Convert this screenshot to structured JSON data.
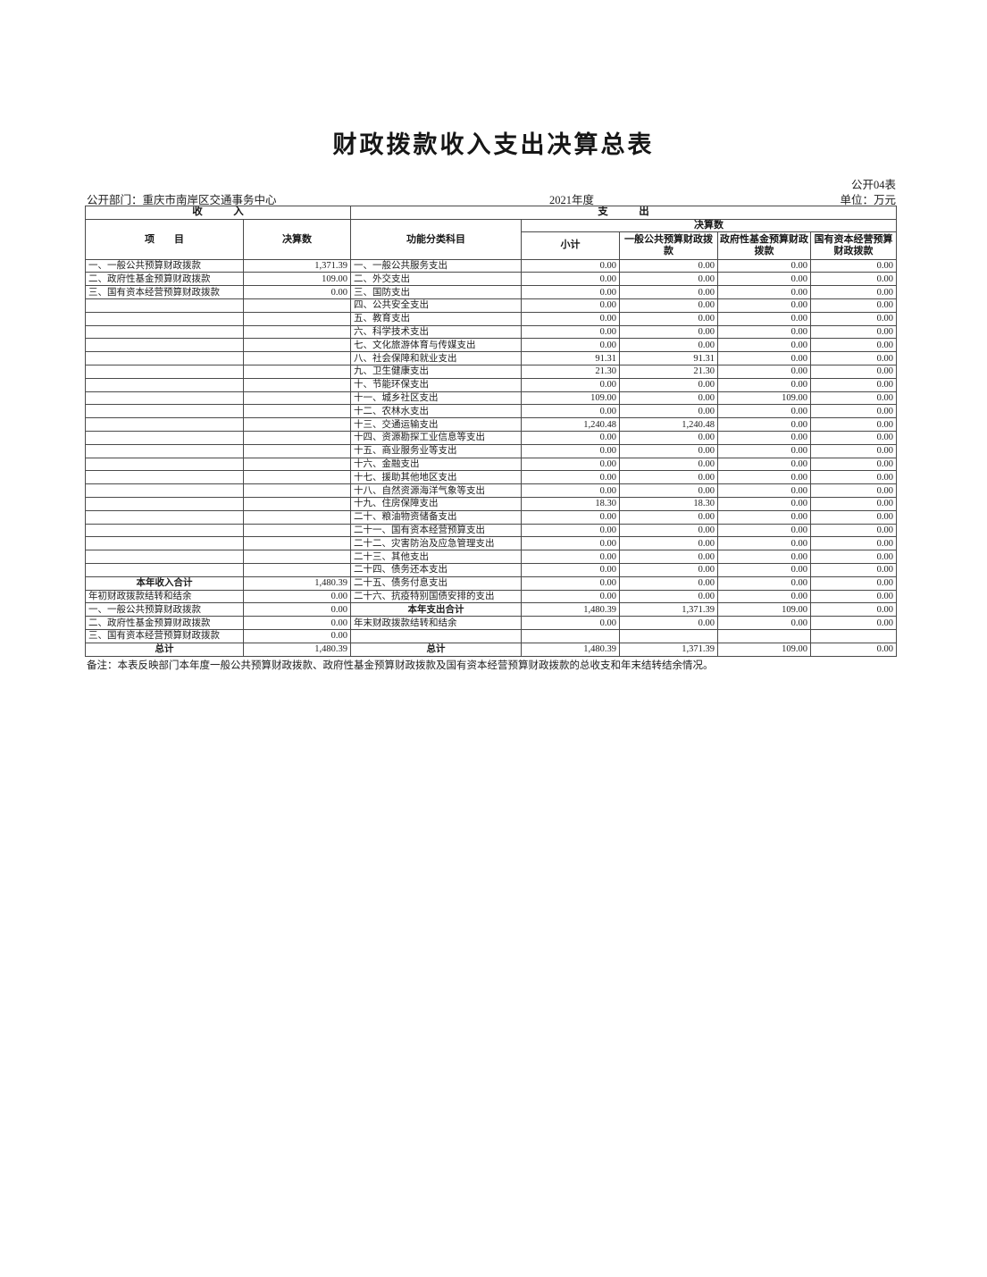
{
  "page": {
    "title": "财政拨款收入支出决算总表",
    "table_code": "公开04表",
    "department": "公开部门：重庆市南岸区交通事务中心",
    "year": "2021年度",
    "unit": "单位：万元",
    "note": "备注：本表反映部门本年度一般公共预算财政拨款、政府性基金预算财政拨款及国有资本经营预算财政拨款的总收支和年末结转结余情况。"
  },
  "table": {
    "header": {
      "income": "收　　　入",
      "expense": "支　　　出",
      "item": "项　　目",
      "amount": "决算数",
      "func": "功能分类科目",
      "final": "决算数",
      "subtotal": "小计",
      "general": "一般公共预算财政拨款",
      "gov_fund": "政府性基金预算财政拨款",
      "state_capital": "国有资本经营预算财政拨款"
    },
    "rows": [
      {
        "income_item": "一、一般公共预算财政拨款",
        "income_value": "1,371.39",
        "expense_item": "一、一般公共服务支出",
        "subtotal": "0.00",
        "general_budget": "0.00",
        "gov_fund": "0.00",
        "state_capital": "0.00"
      },
      {
        "income_item": "二、政府性基金预算财政拨款",
        "income_value": "109.00",
        "expense_item": "二、外交支出",
        "subtotal": "0.00",
        "general_budget": "0.00",
        "gov_fund": "0.00",
        "state_capital": "0.00"
      },
      {
        "income_item": "三、国有资本经营预算财政拨款",
        "income_value": "0.00",
        "expense_item": "三、国防支出",
        "subtotal": "0.00",
        "general_budget": "0.00",
        "gov_fund": "0.00",
        "state_capital": "0.00"
      },
      {
        "income_item": "",
        "income_value": "",
        "expense_item": "四、公共安全支出",
        "subtotal": "0.00",
        "general_budget": "0.00",
        "gov_fund": "0.00",
        "state_capital": "0.00"
      },
      {
        "income_item": "",
        "income_value": "",
        "expense_item": "五、教育支出",
        "subtotal": "0.00",
        "general_budget": "0.00",
        "gov_fund": "0.00",
        "state_capital": "0.00"
      },
      {
        "income_item": "",
        "income_value": "",
        "expense_item": "六、科学技术支出",
        "subtotal": "0.00",
        "general_budget": "0.00",
        "gov_fund": "0.00",
        "state_capital": "0.00"
      },
      {
        "income_item": "",
        "income_value": "",
        "expense_item": "七、文化旅游体育与传媒支出",
        "subtotal": "0.00",
        "general_budget": "0.00",
        "gov_fund": "0.00",
        "state_capital": "0.00"
      },
      {
        "income_item": "",
        "income_value": "",
        "expense_item": "八、社会保障和就业支出",
        "subtotal": "91.31",
        "general_budget": "91.31",
        "gov_fund": "0.00",
        "state_capital": "0.00"
      },
      {
        "income_item": "",
        "income_value": "",
        "expense_item": "九、卫生健康支出",
        "subtotal": "21.30",
        "general_budget": "21.30",
        "gov_fund": "0.00",
        "state_capital": "0.00"
      },
      {
        "income_item": "",
        "income_value": "",
        "expense_item": "十、节能环保支出",
        "subtotal": "0.00",
        "general_budget": "0.00",
        "gov_fund": "0.00",
        "state_capital": "0.00"
      },
      {
        "income_item": "",
        "income_value": "",
        "expense_item": "十一、城乡社区支出",
        "subtotal": "109.00",
        "general_budget": "0.00",
        "gov_fund": "109.00",
        "state_capital": "0.00"
      },
      {
        "income_item": "",
        "income_value": "",
        "expense_item": "十二、农林水支出",
        "subtotal": "0.00",
        "general_budget": "0.00",
        "gov_fund": "0.00",
        "state_capital": "0.00"
      },
      {
        "income_item": "",
        "income_value": "",
        "expense_item": "十三、交通运输支出",
        "subtotal": "1,240.48",
        "general_budget": "1,240.48",
        "gov_fund": "0.00",
        "state_capital": "0.00"
      },
      {
        "income_item": "",
        "income_value": "",
        "expense_item": "十四、资源勘探工业信息等支出",
        "subtotal": "0.00",
        "general_budget": "0.00",
        "gov_fund": "0.00",
        "state_capital": "0.00"
      },
      {
        "income_item": "",
        "income_value": "",
        "expense_item": "十五、商业服务业等支出",
        "subtotal": "0.00",
        "general_budget": "0.00",
        "gov_fund": "0.00",
        "state_capital": "0.00"
      },
      {
        "income_item": "",
        "income_value": "",
        "expense_item": "十六、金融支出",
        "subtotal": "0.00",
        "general_budget": "0.00",
        "gov_fund": "0.00",
        "state_capital": "0.00"
      },
      {
        "income_item": "",
        "income_value": "",
        "expense_item": "十七、援助其他地区支出",
        "subtotal": "0.00",
        "general_budget": "0.00",
        "gov_fund": "0.00",
        "state_capital": "0.00"
      },
      {
        "income_item": "",
        "income_value": "",
        "expense_item": "十八、自然资源海洋气象等支出",
        "subtotal": "0.00",
        "general_budget": "0.00",
        "gov_fund": "0.00",
        "state_capital": "0.00"
      },
      {
        "income_item": "",
        "income_value": "",
        "expense_item": "十九、住房保障支出",
        "subtotal": "18.30",
        "general_budget": "18.30",
        "gov_fund": "0.00",
        "state_capital": "0.00"
      },
      {
        "income_item": "",
        "income_value": "",
        "expense_item": "二十、粮油物资储备支出",
        "subtotal": "0.00",
        "general_budget": "0.00",
        "gov_fund": "0.00",
        "state_capital": "0.00"
      },
      {
        "income_item": "",
        "income_value": "",
        "expense_item": "二十一、国有资本经营预算支出",
        "subtotal": "0.00",
        "general_budget": "0.00",
        "gov_fund": "0.00",
        "state_capital": "0.00"
      },
      {
        "income_item": "",
        "income_value": "",
        "expense_item": "二十二、灾害防治及应急管理支出",
        "subtotal": "0.00",
        "general_budget": "0.00",
        "gov_fund": "0.00",
        "state_capital": "0.00"
      },
      {
        "income_item": "",
        "income_value": "",
        "expense_item": "二十三、其他支出",
        "subtotal": "0.00",
        "general_budget": "0.00",
        "gov_fund": "0.00",
        "state_capital": "0.00"
      },
      {
        "income_item": "",
        "income_value": "",
        "expense_item": "二十四、债务还本支出",
        "subtotal": "0.00",
        "general_budget": "0.00",
        "gov_fund": "0.00",
        "state_capital": "0.00"
      },
      {
        "income_item": "本年收入合计",
        "income_total": true,
        "income_value": "1,480.39",
        "expense_item": "二十五、债务付息支出",
        "subtotal": "0.00",
        "general_budget": "0.00",
        "gov_fund": "0.00",
        "state_capital": "0.00"
      },
      {
        "income_item": "年初财政拨款结转和结余",
        "income_value": "0.00",
        "expense_item": "二十六、抗疫特别国债安排的支出",
        "subtotal": "0.00",
        "general_budget": "0.00",
        "gov_fund": "0.00",
        "state_capital": "0.00"
      },
      {
        "income_item": "一、一般公共预算财政拨款",
        "income_value": "0.00",
        "expense_item": "本年支出合计",
        "expense_total": true,
        "subtotal": "1,480.39",
        "general_budget": "1,371.39",
        "gov_fund": "109.00",
        "state_capital": "0.00"
      },
      {
        "income_item": "二、政府性基金预算财政拨款",
        "income_value": "0.00",
        "expense_item": "年末财政拨款结转和结余",
        "subtotal": "0.00",
        "general_budget": "0.00",
        "gov_fund": "0.00",
        "state_capital": "0.00"
      },
      {
        "income_item": "三、国有资本经营预算财政拨款",
        "income_value": "0.00",
        "expense_item": "",
        "subtotal": "",
        "general_budget": "",
        "gov_fund": "",
        "state_capital": ""
      },
      {
        "income_item": "总计",
        "income_total": true,
        "income_value": "1,480.39",
        "expense_item": "总计",
        "expense_total": true,
        "subtotal": "1,480.39",
        "general_budget": "1,371.39",
        "gov_fund": "109.00",
        "state_capital": "0.00"
      }
    ]
  }
}
